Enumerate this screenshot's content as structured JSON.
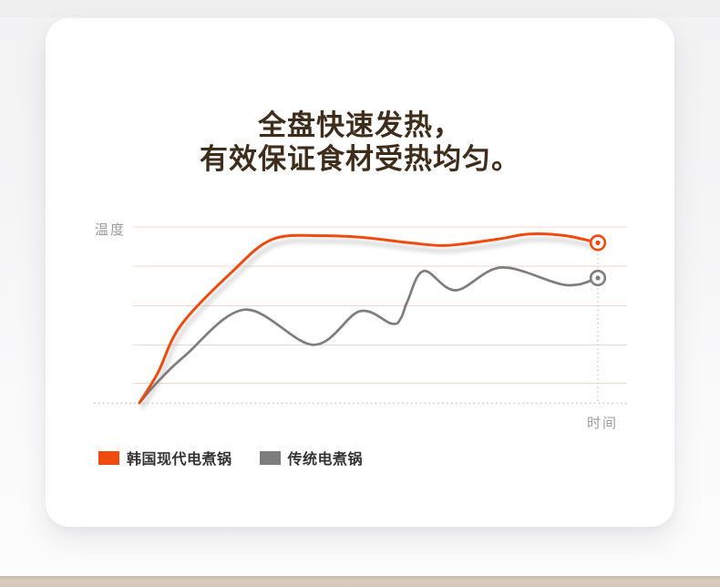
{
  "headline": {
    "line1": "全盘快速发热，",
    "line2": "有效保证食材受热均匀。"
  },
  "chart_data": {
    "type": "line",
    "xlabel": "时间",
    "ylabel": "温度",
    "x_range": [
      0,
      100
    ],
    "y_range": [
      0,
      110
    ],
    "grid": "5 light-pink horizontal gridlines; dotted gray baseline; dotted vertical guide line at curve endpoints",
    "legend_position": "bottom-left",
    "axes_note": "axes have no numeric tick labels; x/y values are estimated on a 0-100 scale read from the plot",
    "series": [
      {
        "name": "韩国现代电煮锅",
        "color": "#f04a0e",
        "x": [
          0,
          4,
          9,
          20,
          29,
          40,
          49,
          59,
          67,
          78,
          85,
          93,
          100
        ],
        "y": [
          0,
          17,
          44,
          74,
          93,
          95,
          94,
          91,
          89.5,
          93,
          96,
          95,
          91
        ]
      },
      {
        "name": "传统电煮锅",
        "color": "#7d7d7d",
        "x": [
          0,
          4,
          10,
          23,
          38,
          48,
          55,
          57,
          58.5,
          62,
          69,
          79,
          93,
          100
        ],
        "y": [
          0,
          12,
          27,
          53,
          33,
          52,
          45,
          48,
          58,
          75,
          64,
          77,
          67,
          71
        ]
      }
    ]
  },
  "colors": {
    "accent_orange": "#f04a0e",
    "series_gray": "#7d7d7d",
    "gridline_pink": "#f0d7d2",
    "title_brown": "#3f2d1b",
    "axis_label_gray": "#9b9b9b",
    "legend_text": "#333333",
    "bottom_band_tan": "#d6c8ba"
  }
}
